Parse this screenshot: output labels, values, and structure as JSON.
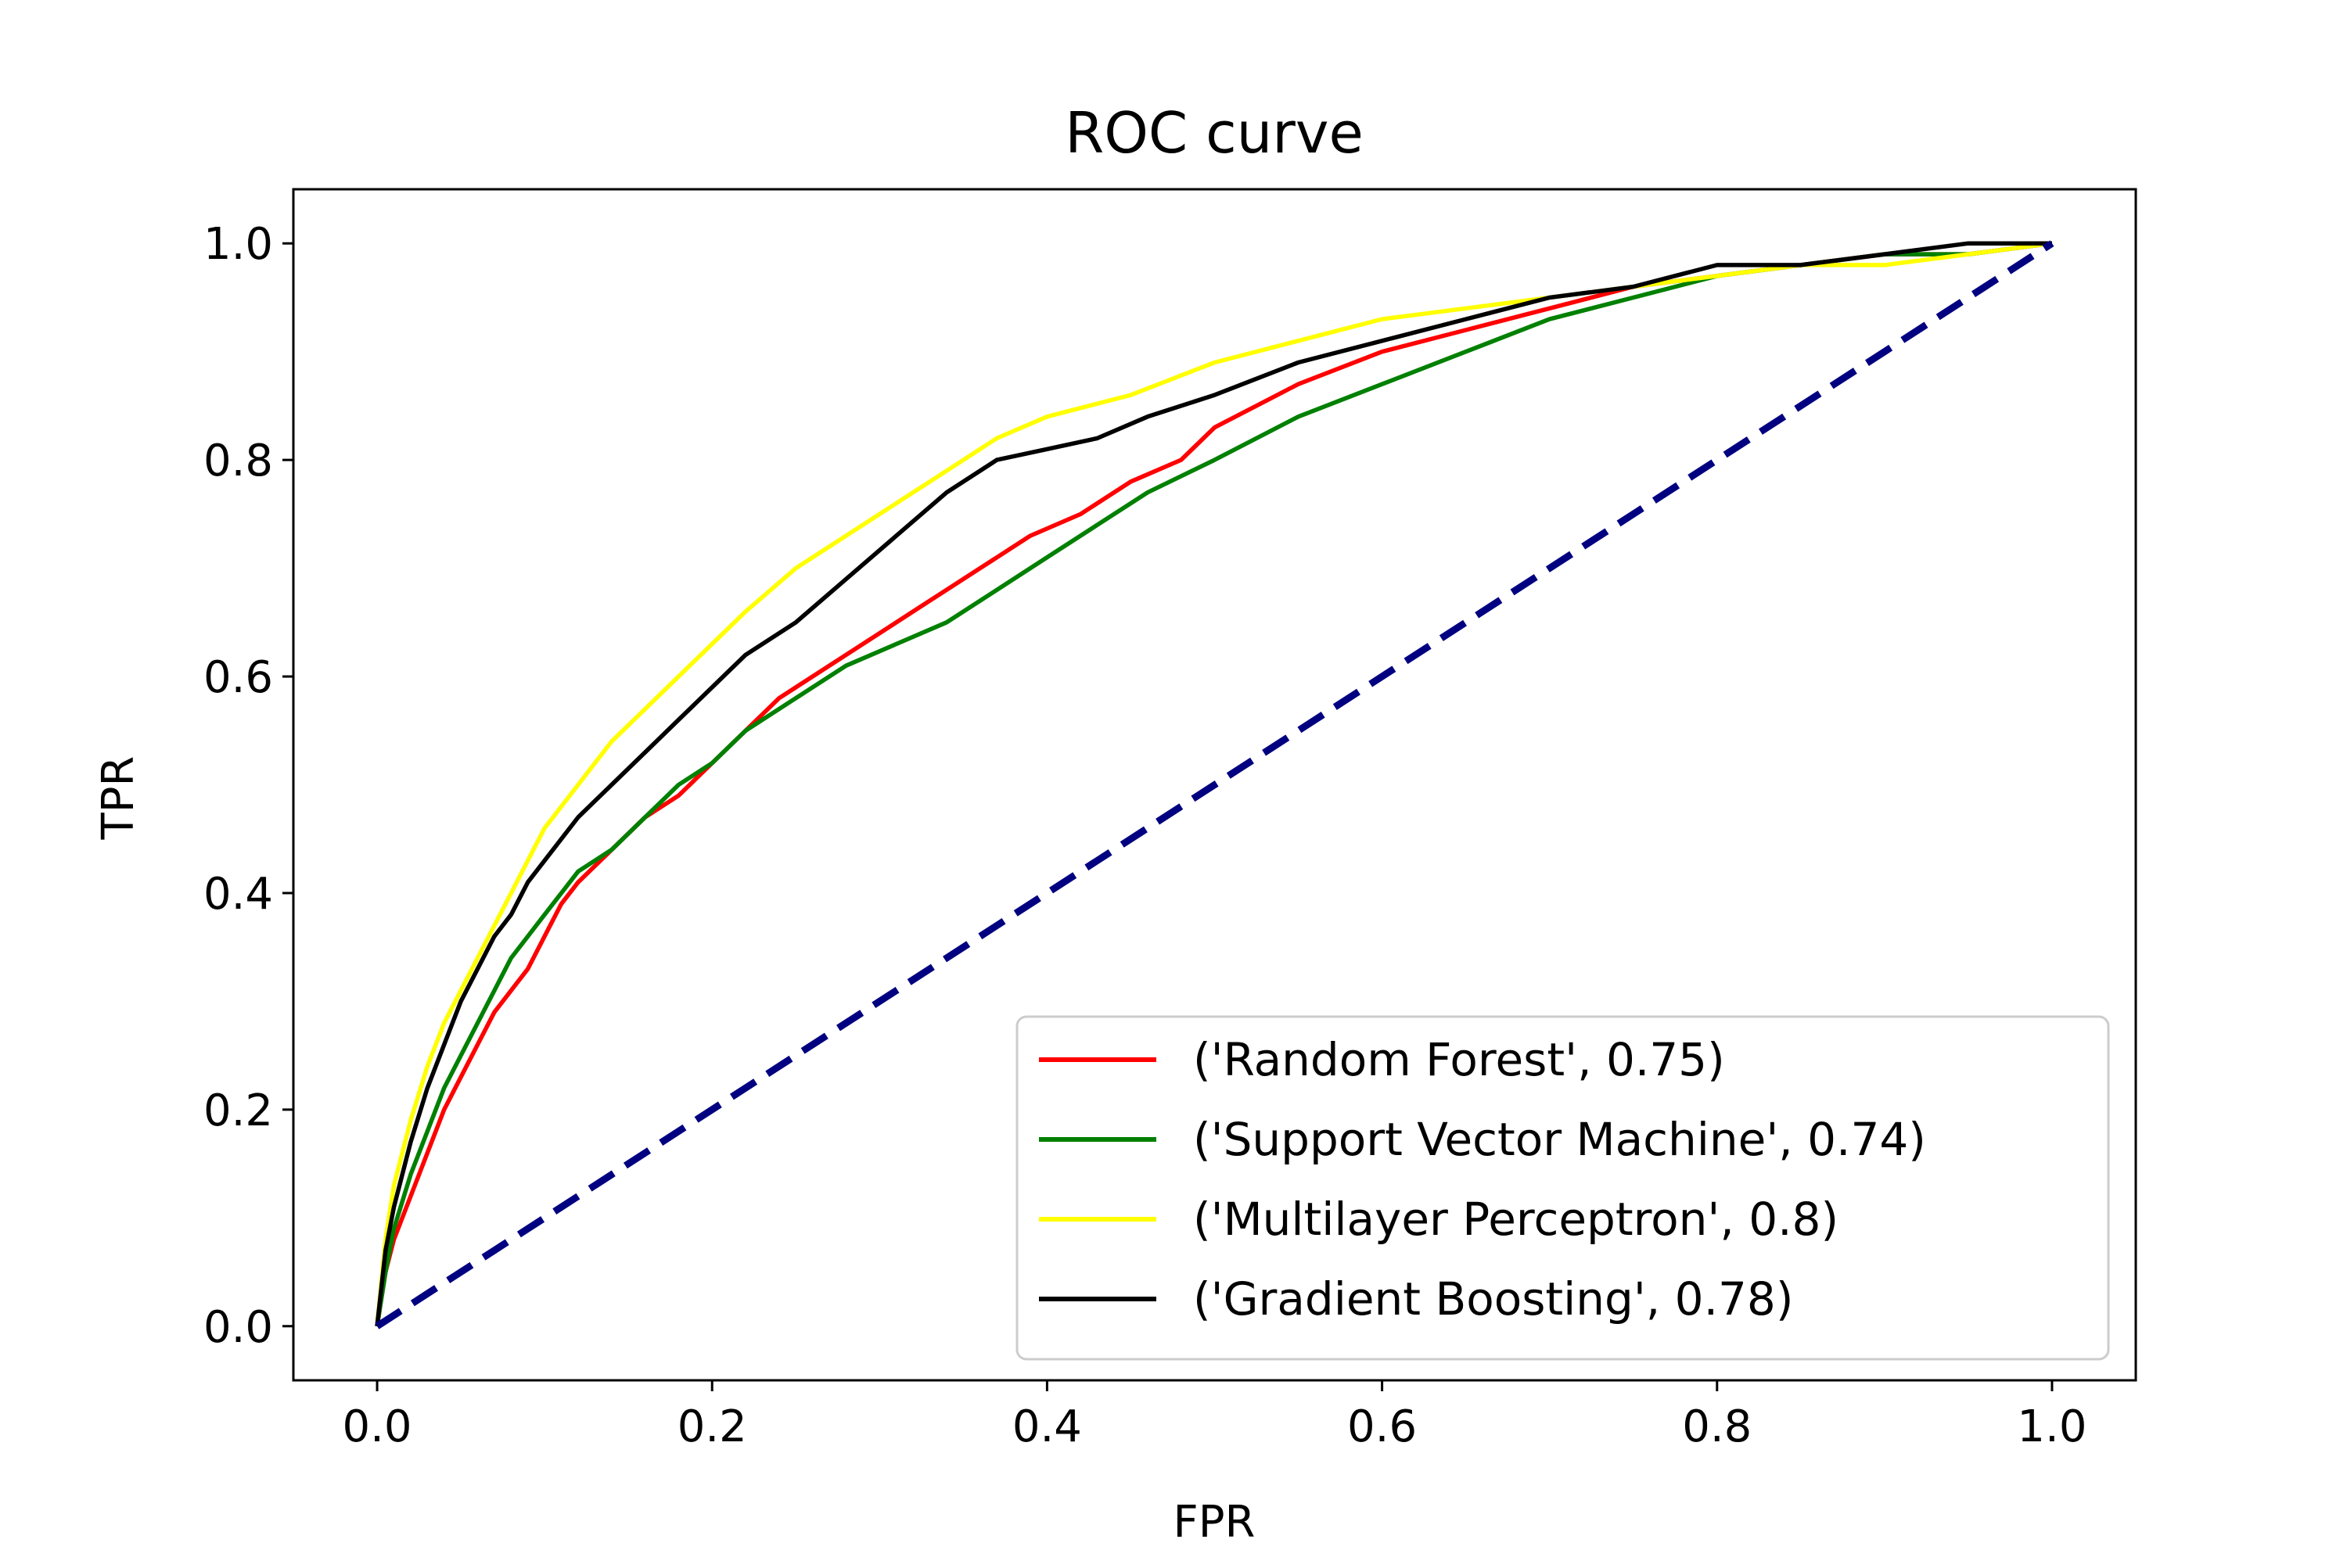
{
  "chart_data": {
    "type": "line",
    "title": "ROC curve",
    "xlabel": "FPR",
    "ylabel": "TPR",
    "xlim": [
      -0.05,
      1.05
    ],
    "ylim": [
      -0.05,
      1.05
    ],
    "x_ticks": [
      "0.0",
      "0.2",
      "0.4",
      "0.6",
      "0.8",
      "1.0"
    ],
    "y_ticks": [
      "0.0",
      "0.2",
      "0.4",
      "0.6",
      "0.8",
      "1.0"
    ],
    "grid": false,
    "legend_position": "lower-right",
    "series": [
      {
        "name": "('Random Forest', 0.75)",
        "color": "#ff0000",
        "points": [
          [
            0,
            0
          ],
          [
            0.005,
            0.05
          ],
          [
            0.01,
            0.08
          ],
          [
            0.02,
            0.12
          ],
          [
            0.03,
            0.16
          ],
          [
            0.04,
            0.2
          ],
          [
            0.05,
            0.23
          ],
          [
            0.06,
            0.26
          ],
          [
            0.07,
            0.29
          ],
          [
            0.08,
            0.31
          ],
          [
            0.09,
            0.33
          ],
          [
            0.1,
            0.36
          ],
          [
            0.11,
            0.39
          ],
          [
            0.12,
            0.41
          ],
          [
            0.14,
            0.44
          ],
          [
            0.16,
            0.47
          ],
          [
            0.18,
            0.49
          ],
          [
            0.2,
            0.52
          ],
          [
            0.22,
            0.55
          ],
          [
            0.24,
            0.58
          ],
          [
            0.27,
            0.61
          ],
          [
            0.3,
            0.64
          ],
          [
            0.33,
            0.67
          ],
          [
            0.36,
            0.7
          ],
          [
            0.39,
            0.73
          ],
          [
            0.42,
            0.75
          ],
          [
            0.45,
            0.78
          ],
          [
            0.48,
            0.8
          ],
          [
            0.5,
            0.83
          ],
          [
            0.55,
            0.87
          ],
          [
            0.6,
            0.9
          ],
          [
            0.65,
            0.92
          ],
          [
            0.7,
            0.94
          ],
          [
            0.75,
            0.96
          ],
          [
            0.8,
            0.97
          ],
          [
            0.85,
            0.98
          ],
          [
            0.9,
            0.99
          ],
          [
            0.95,
            0.99
          ],
          [
            1.0,
            1.0
          ]
        ]
      },
      {
        "name": "('Support Vector Machine', 0.74)",
        "color": "#008000",
        "points": [
          [
            0,
            0
          ],
          [
            0.005,
            0.05
          ],
          [
            0.01,
            0.09
          ],
          [
            0.02,
            0.14
          ],
          [
            0.03,
            0.18
          ],
          [
            0.04,
            0.22
          ],
          [
            0.05,
            0.25
          ],
          [
            0.06,
            0.28
          ],
          [
            0.07,
            0.31
          ],
          [
            0.08,
            0.34
          ],
          [
            0.09,
            0.36
          ],
          [
            0.1,
            0.38
          ],
          [
            0.11,
            0.4
          ],
          [
            0.12,
            0.42
          ],
          [
            0.14,
            0.44
          ],
          [
            0.16,
            0.47
          ],
          [
            0.18,
            0.5
          ],
          [
            0.2,
            0.52
          ],
          [
            0.22,
            0.55
          ],
          [
            0.25,
            0.58
          ],
          [
            0.28,
            0.61
          ],
          [
            0.31,
            0.63
          ],
          [
            0.34,
            0.65
          ],
          [
            0.37,
            0.68
          ],
          [
            0.4,
            0.71
          ],
          [
            0.43,
            0.74
          ],
          [
            0.46,
            0.77
          ],
          [
            0.5,
            0.8
          ],
          [
            0.55,
            0.84
          ],
          [
            0.6,
            0.87
          ],
          [
            0.65,
            0.9
          ],
          [
            0.7,
            0.93
          ],
          [
            0.75,
            0.95
          ],
          [
            0.8,
            0.97
          ],
          [
            0.85,
            0.98
          ],
          [
            0.9,
            0.99
          ],
          [
            0.95,
            0.99
          ],
          [
            1.0,
            1.0
          ]
        ]
      },
      {
        "name": "('Multilayer Perceptron', 0.8)",
        "color": "#ffff00",
        "points": [
          [
            0,
            0
          ],
          [
            0.005,
            0.08
          ],
          [
            0.01,
            0.13
          ],
          [
            0.02,
            0.19
          ],
          [
            0.03,
            0.24
          ],
          [
            0.04,
            0.28
          ],
          [
            0.05,
            0.31
          ],
          [
            0.06,
            0.34
          ],
          [
            0.07,
            0.37
          ],
          [
            0.08,
            0.4
          ],
          [
            0.09,
            0.43
          ],
          [
            0.1,
            0.46
          ],
          [
            0.12,
            0.5
          ],
          [
            0.14,
            0.54
          ],
          [
            0.16,
            0.57
          ],
          [
            0.18,
            0.6
          ],
          [
            0.2,
            0.63
          ],
          [
            0.22,
            0.66
          ],
          [
            0.25,
            0.7
          ],
          [
            0.28,
            0.73
          ],
          [
            0.31,
            0.76
          ],
          [
            0.34,
            0.79
          ],
          [
            0.37,
            0.82
          ],
          [
            0.4,
            0.84
          ],
          [
            0.45,
            0.86
          ],
          [
            0.5,
            0.89
          ],
          [
            0.55,
            0.91
          ],
          [
            0.6,
            0.93
          ],
          [
            0.65,
            0.94
          ],
          [
            0.7,
            0.95
          ],
          [
            0.75,
            0.96
          ],
          [
            0.8,
            0.97
          ],
          [
            0.85,
            0.98
          ],
          [
            0.9,
            0.98
          ],
          [
            0.95,
            0.99
          ],
          [
            1.0,
            1.0
          ]
        ]
      },
      {
        "name": "('Gradient Boosting', 0.78)",
        "color": "#000000",
        "points": [
          [
            0,
            0
          ],
          [
            0.005,
            0.07
          ],
          [
            0.01,
            0.11
          ],
          [
            0.02,
            0.17
          ],
          [
            0.03,
            0.22
          ],
          [
            0.04,
            0.26
          ],
          [
            0.05,
            0.3
          ],
          [
            0.06,
            0.33
          ],
          [
            0.07,
            0.36
          ],
          [
            0.08,
            0.38
          ],
          [
            0.09,
            0.41
          ],
          [
            0.1,
            0.43
          ],
          [
            0.12,
            0.47
          ],
          [
            0.14,
            0.5
          ],
          [
            0.16,
            0.53
          ],
          [
            0.18,
            0.56
          ],
          [
            0.2,
            0.59
          ],
          [
            0.22,
            0.62
          ],
          [
            0.25,
            0.65
          ],
          [
            0.28,
            0.69
          ],
          [
            0.31,
            0.73
          ],
          [
            0.34,
            0.77
          ],
          [
            0.37,
            0.8
          ],
          [
            0.4,
            0.81
          ],
          [
            0.43,
            0.82
          ],
          [
            0.46,
            0.84
          ],
          [
            0.5,
            0.86
          ],
          [
            0.55,
            0.89
          ],
          [
            0.6,
            0.91
          ],
          [
            0.65,
            0.93
          ],
          [
            0.7,
            0.95
          ],
          [
            0.75,
            0.96
          ],
          [
            0.8,
            0.98
          ],
          [
            0.85,
            0.98
          ],
          [
            0.9,
            0.99
          ],
          [
            0.95,
            1.0
          ],
          [
            1.0,
            1.0
          ]
        ]
      },
      {
        "name": "",
        "color": "#000080",
        "dashed": true,
        "points": [
          [
            0,
            0
          ],
          [
            1,
            1
          ]
        ]
      }
    ]
  }
}
